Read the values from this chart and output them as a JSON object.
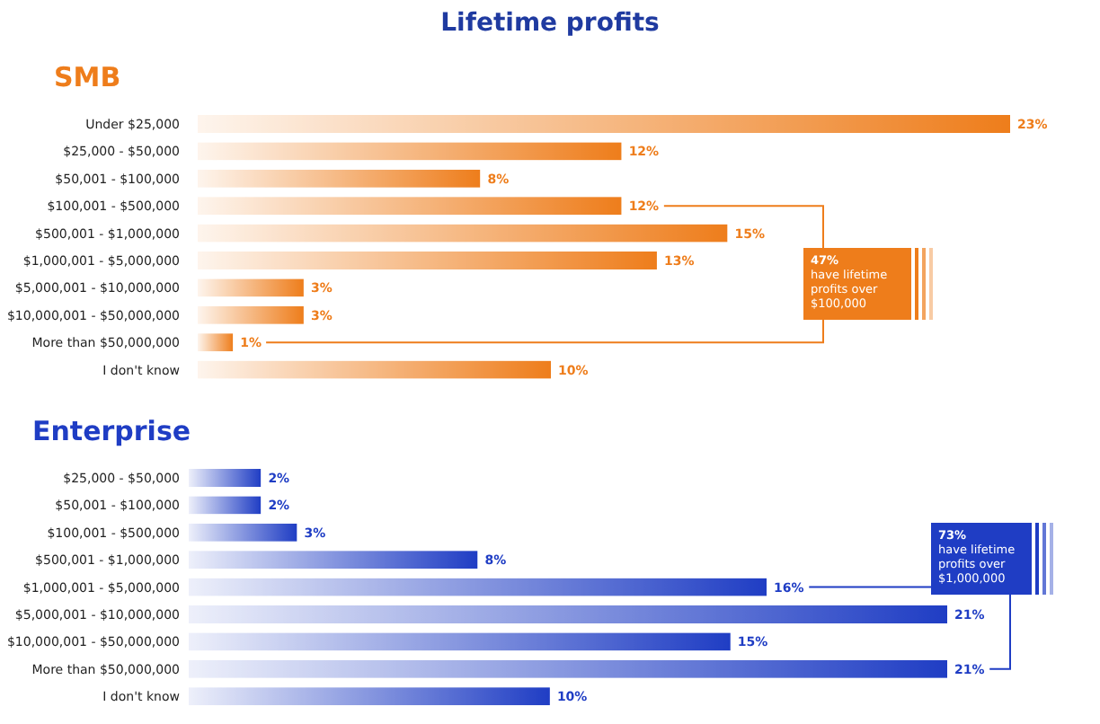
{
  "chart_data": [
    {
      "type": "bar",
      "orientation": "horizontal",
      "title": "Lifetime profits",
      "subtitle": "SMB",
      "categories": [
        "Under $25,000",
        "$25,000 - $50,000",
        "$50,001 - $100,000",
        "$100,001 - $500,000",
        "$500,001 - $1,000,000",
        "$1,000,001 - $5,000,000",
        "$5,000,001 - $10,000,000",
        "$10,000,001 - $50,000,000",
        "More than $50,000,000",
        "I don't know"
      ],
      "values": [
        23,
        12,
        8,
        12,
        15,
        13,
        3,
        3,
        1,
        10
      ],
      "value_labels": [
        "23%",
        "12%",
        "8%",
        "12%",
        "15%",
        "13%",
        "3%",
        "3%",
        "1%",
        "10%"
      ],
      "color": "#ee7d1b",
      "annotations": [
        "47%\nhave lifetime\nprofits over\n$100,000"
      ]
    },
    {
      "type": "bar",
      "orientation": "horizontal",
      "title": "Enterprise",
      "categories": [
        "$25,000 - $50,000",
        "$50,001 - $100,000",
        "$100,001 - $500,000",
        "$500,001 - $1,000,000",
        "$1,000,001 - $5,000,000",
        "$5,000,001 - $10,000,000",
        "$10,000,001 - $50,000,000",
        "More than $50,000,000",
        "I don't know"
      ],
      "values": [
        2,
        2,
        3,
        8,
        16,
        21,
        15,
        21,
        10
      ],
      "value_labels": [
        "2%",
        "2%",
        "3%",
        "8%",
        "16%",
        "21%",
        "15%",
        "21%",
        "10%"
      ],
      "color": "#1f3dc4",
      "annotations": [
        "73%\nhave lifetime\nprofits over\n$1,000,000"
      ]
    }
  ]
}
